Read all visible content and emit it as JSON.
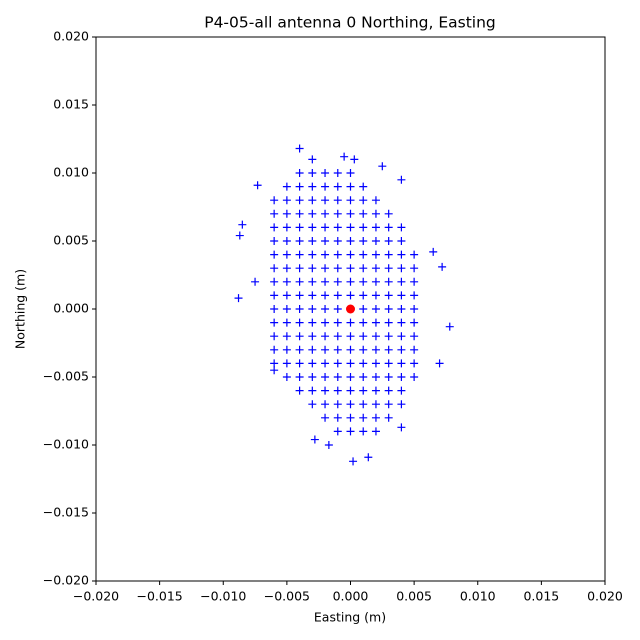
{
  "chart_data": {
    "type": "scatter",
    "title": "P4-05-all antenna 0 Northing, Easting",
    "x_label": "Easting (m)",
    "y_label": "Northing (m)",
    "xlim": [
      -0.02,
      0.02
    ],
    "ylim": [
      -0.02,
      0.02
    ],
    "xticks": [
      {
        "value": -0.02,
        "label": "−0.020"
      },
      {
        "value": -0.015,
        "label": "−0.015"
      },
      {
        "value": -0.01,
        "label": "−0.010"
      },
      {
        "value": -0.005,
        "label": "−0.005"
      },
      {
        "value": 0,
        "label": "0.000"
      },
      {
        "value": 0.005,
        "label": "0.005"
      },
      {
        "value": 0.01,
        "label": "0.010"
      },
      {
        "value": 0.015,
        "label": "0.015"
      },
      {
        "value": 0.02,
        "label": "0.020"
      }
    ],
    "yticks": [
      {
        "value": -0.02,
        "label": "−0.020"
      },
      {
        "value": -0.015,
        "label": "−0.015"
      },
      {
        "value": -0.01,
        "label": "−0.010"
      },
      {
        "value": -0.005,
        "label": "−0.005"
      },
      {
        "value": 0,
        "label": "0.000"
      },
      {
        "value": 0.005,
        "label": "0.005"
      },
      {
        "value": 0.01,
        "label": "0.010"
      },
      {
        "value": 0.015,
        "label": "0.015"
      },
      {
        "value": 0.02,
        "label": "0.020"
      }
    ],
    "grid": false,
    "series": [
      {
        "color": "#0000ff",
        "marker": "+",
        "x": [
          -0.006,
          -0.006,
          -0.006,
          -0.006,
          -0.006,
          -0.006,
          -0.006,
          -0.006,
          -0.006,
          -0.006,
          -0.006,
          -0.006,
          -0.006,
          -0.005,
          -0.005,
          -0.005,
          -0.005,
          -0.005,
          -0.005,
          -0.005,
          -0.005,
          -0.005,
          -0.005,
          -0.005,
          -0.005,
          -0.005,
          -0.005,
          -0.005,
          -0.004,
          -0.004,
          -0.004,
          -0.004,
          -0.004,
          -0.004,
          -0.004,
          -0.004,
          -0.004,
          -0.004,
          -0.004,
          -0.004,
          -0.004,
          -0.004,
          -0.004,
          -0.004,
          -0.004,
          -0.003,
          -0.003,
          -0.003,
          -0.003,
          -0.003,
          -0.003,
          -0.003,
          -0.003,
          -0.003,
          -0.003,
          -0.003,
          -0.003,
          -0.003,
          -0.003,
          -0.003,
          -0.003,
          -0.003,
          -0.003,
          -0.002,
          -0.002,
          -0.002,
          -0.002,
          -0.002,
          -0.002,
          -0.002,
          -0.002,
          -0.002,
          -0.002,
          -0.002,
          -0.002,
          -0.002,
          -0.002,
          -0.002,
          -0.002,
          -0.002,
          -0.002,
          -0.002,
          -0.001,
          -0.001,
          -0.001,
          -0.001,
          -0.001,
          -0.001,
          -0.001,
          -0.001,
          -0.001,
          -0.001,
          -0.001,
          -0.001,
          -0.001,
          -0.001,
          -0.001,
          -0.001,
          -0.001,
          -0.001,
          -0.001,
          -0.001,
          0,
          0,
          0,
          0,
          0,
          0,
          0,
          0,
          0,
          0,
          0,
          0,
          0,
          0,
          0,
          0,
          0,
          0,
          0,
          0,
          0.001,
          0.001,
          0.001,
          0.001,
          0.001,
          0.001,
          0.001,
          0.001,
          0.001,
          0.001,
          0.001,
          0.001,
          0.001,
          0.001,
          0.001,
          0.001,
          0.001,
          0.001,
          0.001,
          0.002,
          0.002,
          0.002,
          0.002,
          0.002,
          0.002,
          0.002,
          0.002,
          0.002,
          0.002,
          0.002,
          0.002,
          0.002,
          0.002,
          0.002,
          0.002,
          0.002,
          0.002,
          0.003,
          0.003,
          0.003,
          0.003,
          0.003,
          0.003,
          0.003,
          0.003,
          0.003,
          0.003,
          0.003,
          0.003,
          0.003,
          0.003,
          0.003,
          0.003,
          0.004,
          0.004,
          0.004,
          0.004,
          0.004,
          0.004,
          0.004,
          0.004,
          0.004,
          0.004,
          0.004,
          0.004,
          0.004,
          0.004,
          0.005,
          0.005,
          0.005,
          0.005,
          0.005,
          0.005,
          0.005,
          0.005,
          0.005,
          0.005,
          -0.0088,
          -0.0087,
          -0.0085,
          -0.004,
          -0.003,
          -0.0005,
          0.0003,
          0.0025,
          0.004,
          0.0078,
          0.007,
          0.0072,
          0.0065,
          0.0002,
          0.0014,
          -0.0017,
          -0.0028,
          0.004,
          -0.006,
          -0.0075,
          -0.0073
        ],
        "values": [
          -0.004,
          -0.003,
          -0.002,
          -0.001,
          0,
          0.001,
          0.002,
          0.003,
          0.004,
          0.005,
          0.006,
          0.007,
          0.008,
          -0.005,
          -0.004,
          -0.003,
          -0.002,
          -0.001,
          0,
          0.001,
          0.002,
          0.003,
          0.004,
          0.005,
          0.006,
          0.007,
          0.008,
          0.009,
          -0.006,
          -0.005,
          -0.004,
          -0.003,
          -0.002,
          -0.001,
          0,
          0.001,
          0.002,
          0.003,
          0.004,
          0.005,
          0.006,
          0.007,
          0.008,
          0.009,
          0.01,
          -0.007,
          -0.006,
          -0.005,
          -0.004,
          -0.003,
          -0.002,
          -0.001,
          0,
          0.001,
          0.002,
          0.003,
          0.004,
          0.005,
          0.006,
          0.007,
          0.008,
          0.009,
          0.01,
          -0.008,
          -0.007,
          -0.006,
          -0.005,
          -0.004,
          -0.003,
          -0.002,
          -0.001,
          0,
          0.001,
          0.002,
          0.003,
          0.004,
          0.005,
          0.006,
          0.007,
          0.008,
          0.009,
          0.01,
          -0.009,
          -0.008,
          -0.007,
          -0.006,
          -0.005,
          -0.004,
          -0.003,
          -0.002,
          -0.001,
          0,
          0.001,
          0.002,
          0.003,
          0.004,
          0.005,
          0.006,
          0.007,
          0.008,
          0.009,
          0.01,
          -0.009,
          -0.008,
          -0.007,
          -0.006,
          -0.005,
          -0.004,
          -0.003,
          -0.002,
          -0.001,
          0,
          0.001,
          0.002,
          0.003,
          0.004,
          0.005,
          0.006,
          0.007,
          0.008,
          0.009,
          0.01,
          -0.009,
          -0.008,
          -0.007,
          -0.006,
          -0.005,
          -0.004,
          -0.003,
          -0.002,
          -0.001,
          0,
          0.001,
          0.002,
          0.003,
          0.004,
          0.005,
          0.006,
          0.007,
          0.008,
          0.009,
          -0.009,
          -0.008,
          -0.007,
          -0.006,
          -0.005,
          -0.004,
          -0.003,
          -0.002,
          -0.001,
          0,
          0.001,
          0.002,
          0.003,
          0.004,
          0.005,
          0.006,
          0.007,
          0.008,
          -0.008,
          -0.007,
          -0.006,
          -0.005,
          -0.004,
          -0.003,
          -0.002,
          -0.001,
          0,
          0.001,
          0.002,
          0.003,
          0.004,
          0.005,
          0.006,
          0.007,
          -0.007,
          -0.006,
          -0.005,
          -0.004,
          -0.003,
          -0.002,
          -0.001,
          0,
          0.001,
          0.002,
          0.003,
          0.004,
          0.005,
          0.006,
          -0.005,
          -0.004,
          -0.003,
          -0.002,
          -0.001,
          0,
          0.001,
          0.002,
          0.003,
          0.004,
          0.0008,
          0.0054,
          0.0062,
          0.0118,
          0.011,
          0.0112,
          0.011,
          0.0105,
          0.0095,
          -0.0013,
          -0.004,
          0.0031,
          0.0042,
          -0.0112,
          -0.0109,
          -0.01,
          -0.0096,
          -0.0087,
          -0.0045,
          0.002,
          0.0091
        ]
      },
      {
        "color": "#ff0000",
        "marker": "o",
        "x": [
          0
        ],
        "values": [
          0
        ]
      }
    ]
  }
}
